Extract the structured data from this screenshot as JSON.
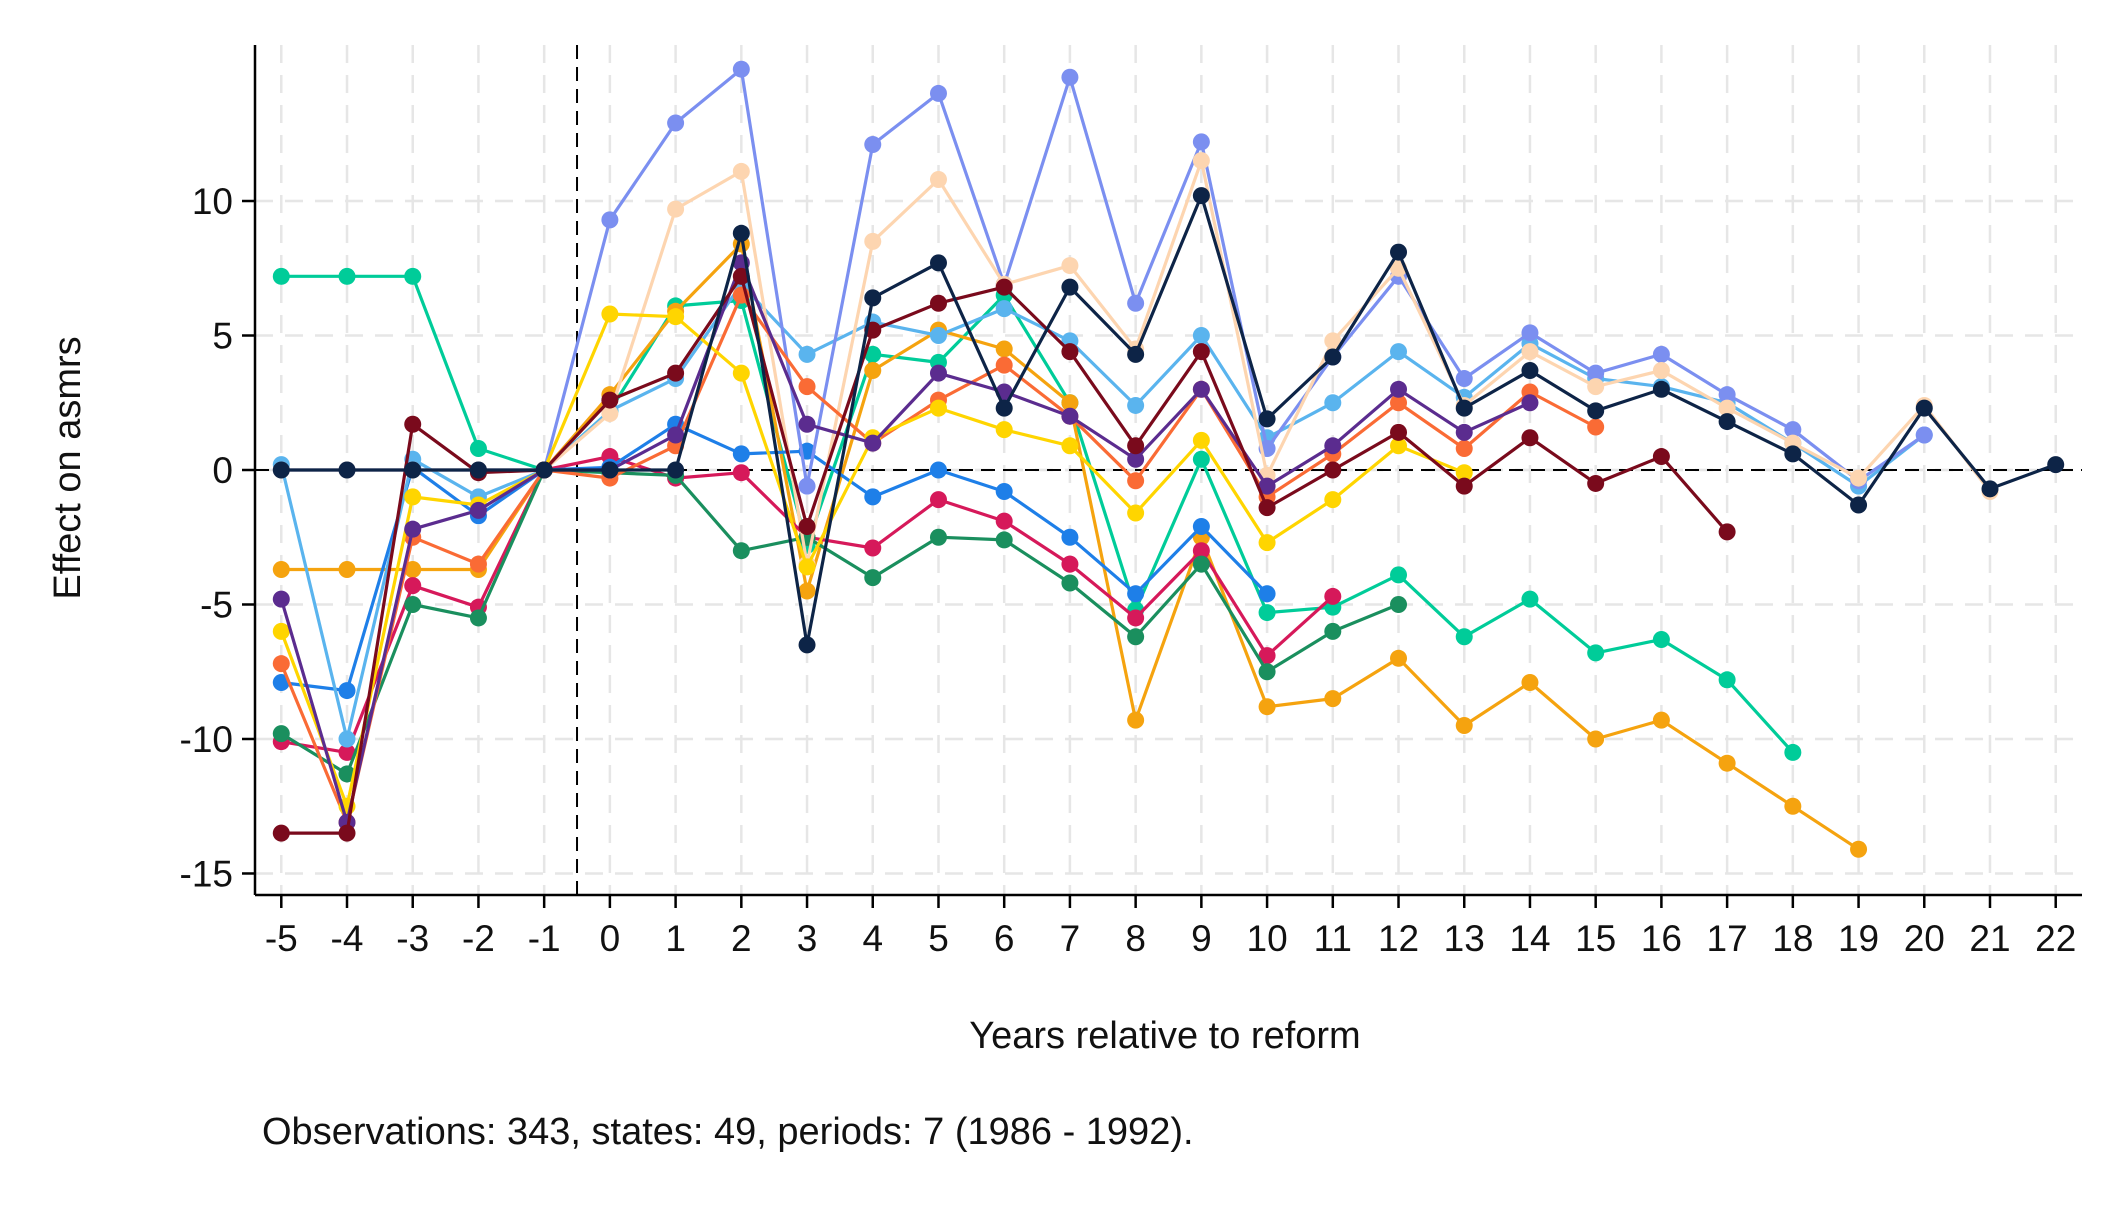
{
  "chart_data": {
    "type": "line",
    "title": "",
    "xlabel": "Years relative to reform",
    "ylabel": "Effect on asmrs",
    "note": "Observations: 343, states: 49, periods: 7 (1986 - 1992).",
    "x_ticks": [
      -5,
      -4,
      -3,
      -2,
      -1,
      0,
      1,
      2,
      3,
      4,
      5,
      6,
      7,
      8,
      9,
      10,
      11,
      12,
      13,
      14,
      15,
      16,
      17,
      18,
      19,
      20,
      21,
      22
    ],
    "y_ticks": [
      -15,
      -10,
      -5,
      0,
      5,
      10
    ],
    "xlim": [
      -5.4,
      22.4
    ],
    "ylim": [
      -15.8,
      15.8
    ],
    "grid": true,
    "legend": "none",
    "reference_lines": {
      "x": -0.5,
      "y": 0
    },
    "series": [
      {
        "color": "#00cc99",
        "points": [
          [
            -5,
            7.2
          ],
          [
            -4,
            7.2
          ],
          [
            -3,
            7.2
          ],
          [
            -2,
            0.8
          ],
          [
            -1,
            0
          ],
          [
            0,
            2.2
          ],
          [
            1,
            6.1
          ],
          [
            2,
            6.3
          ],
          [
            3,
            -2.8
          ],
          [
            4,
            4.3
          ],
          [
            5,
            4.0
          ],
          [
            6,
            6.5
          ],
          [
            7,
            2.5
          ],
          [
            8,
            -5.2
          ],
          [
            9,
            0.4
          ],
          [
            10,
            -5.3
          ],
          [
            11,
            -5.1
          ],
          [
            12,
            -3.9
          ],
          [
            13,
            -6.2
          ],
          [
            14,
            -4.8
          ],
          [
            15,
            -6.8
          ],
          [
            16,
            -6.3
          ],
          [
            17,
            -7.8
          ],
          [
            18,
            -10.5
          ]
        ]
      },
      {
        "color": "#f5a30f",
        "points": [
          [
            -5,
            -3.7
          ],
          [
            -4,
            -3.7
          ],
          [
            -3,
            -3.7
          ],
          [
            -2,
            -3.7
          ],
          [
            -1,
            0
          ],
          [
            0,
            2.8
          ],
          [
            1,
            5.9
          ],
          [
            2,
            8.4
          ],
          [
            3,
            -4.5
          ],
          [
            4,
            3.7
          ],
          [
            5,
            5.2
          ],
          [
            6,
            4.5
          ],
          [
            7,
            2.5
          ],
          [
            8,
            -9.3
          ],
          [
            9,
            -2.5
          ],
          [
            10,
            -8.8
          ],
          [
            11,
            -8.5
          ],
          [
            12,
            -7.0
          ],
          [
            13,
            -9.5
          ],
          [
            14,
            -7.9
          ],
          [
            15,
            -10.0
          ],
          [
            16,
            -9.3
          ],
          [
            17,
            -10.9
          ],
          [
            18,
            -12.5
          ],
          [
            19,
            -14.1
          ]
        ]
      },
      {
        "color": "#d6195a",
        "points": [
          [
            -5,
            -10.1
          ],
          [
            -4,
            -10.5
          ],
          [
            -3,
            -4.3
          ],
          [
            -2,
            -5.1
          ],
          [
            -1,
            0
          ],
          [
            0,
            0.5
          ],
          [
            1,
            -0.3
          ],
          [
            2,
            -0.1
          ],
          [
            3,
            -2.5
          ],
          [
            4,
            -2.9
          ],
          [
            5,
            -1.1
          ],
          [
            6,
            -1.9
          ],
          [
            7,
            -3.5
          ],
          [
            8,
            -5.5
          ],
          [
            9,
            -3.0
          ],
          [
            10,
            -6.9
          ],
          [
            11,
            -4.7
          ]
        ]
      },
      {
        "color": "#1a8f5e",
        "points": [
          [
            -5,
            -9.8
          ],
          [
            -4,
            -11.3
          ],
          [
            -3,
            -5.0
          ],
          [
            -2,
            -5.5
          ],
          [
            -1,
            0
          ],
          [
            0,
            -0.1
          ],
          [
            1,
            -0.2
          ],
          [
            2,
            -3.0
          ],
          [
            3,
            -2.5
          ],
          [
            4,
            -4.0
          ],
          [
            5,
            -2.5
          ],
          [
            6,
            -2.6
          ],
          [
            7,
            -4.2
          ],
          [
            8,
            -6.2
          ],
          [
            9,
            -3.5
          ],
          [
            10,
            -7.5
          ],
          [
            11,
            -6.0
          ],
          [
            12,
            -5.0
          ]
        ]
      },
      {
        "color": "#1e7fe8",
        "points": [
          [
            -5,
            -7.9
          ],
          [
            -4,
            -8.2
          ],
          [
            -3,
            0.1
          ],
          [
            -2,
            -1.7
          ],
          [
            -1,
            0
          ],
          [
            0,
            0.1
          ],
          [
            1,
            1.7
          ],
          [
            2,
            0.6
          ],
          [
            3,
            0.7
          ],
          [
            4,
            -1.0
          ],
          [
            5,
            0.0
          ],
          [
            6,
            -0.8
          ],
          [
            7,
            -2.5
          ],
          [
            8,
            -4.6
          ],
          [
            9,
            -2.1
          ],
          [
            10,
            -4.6
          ]
        ]
      },
      {
        "color": "#5ab4ee",
        "points": [
          [
            -5,
            0.2
          ],
          [
            -4,
            -10.0
          ],
          [
            -3,
            0.4
          ],
          [
            -2,
            -1.0
          ],
          [
            -1,
            0
          ],
          [
            0,
            2.2
          ],
          [
            1,
            3.4
          ],
          [
            2,
            6.9
          ],
          [
            3,
            4.3
          ],
          [
            4,
            5.5
          ],
          [
            5,
            5.0
          ],
          [
            6,
            6.0
          ],
          [
            7,
            4.8
          ],
          [
            8,
            2.4
          ],
          [
            9,
            5.0
          ],
          [
            10,
            1.2
          ],
          [
            11,
            2.5
          ],
          [
            12,
            4.4
          ],
          [
            13,
            2.7
          ],
          [
            14,
            4.7
          ],
          [
            15,
            3.4
          ],
          [
            16,
            3.1
          ],
          [
            17,
            2.5
          ],
          [
            18,
            1.0
          ],
          [
            19,
            -0.6
          ],
          [
            20,
            1.3
          ]
        ]
      },
      {
        "color": "#7b8ff0",
        "points": [
          [
            -5,
            0.0
          ],
          [
            -4,
            0.0
          ],
          [
            -3,
            0.0
          ],
          [
            -2,
            0.0
          ],
          [
            -1,
            0
          ],
          [
            0,
            9.3
          ],
          [
            1,
            12.9
          ],
          [
            2,
            14.9
          ],
          [
            3,
            -0.6
          ],
          [
            4,
            12.1
          ],
          [
            5,
            14.0
          ],
          [
            6,
            6.9
          ],
          [
            7,
            14.6
          ],
          [
            8,
            6.2
          ],
          [
            9,
            12.2
          ],
          [
            10,
            0.8
          ],
          [
            11,
            4.2
          ],
          [
            12,
            7.2
          ],
          [
            13,
            3.4
          ],
          [
            14,
            5.1
          ],
          [
            15,
            3.6
          ],
          [
            16,
            4.3
          ],
          [
            17,
            2.8
          ],
          [
            18,
            1.5
          ],
          [
            19,
            -0.4
          ],
          [
            20,
            1.3
          ]
        ]
      },
      {
        "color": "#fdd5b0",
        "points": [
          [
            -5,
            0.0
          ],
          [
            -4,
            0.0
          ],
          [
            -3,
            0.0
          ],
          [
            -2,
            0.0
          ],
          [
            -1,
            0
          ],
          [
            0,
            2.1
          ],
          [
            1,
            9.7
          ],
          [
            2,
            11.1
          ],
          [
            3,
            -3.5
          ],
          [
            4,
            8.5
          ],
          [
            5,
            10.8
          ],
          [
            6,
            6.9
          ],
          [
            7,
            7.6
          ],
          [
            8,
            4.5
          ],
          [
            9,
            11.5
          ],
          [
            10,
            -0.2
          ],
          [
            11,
            4.8
          ],
          [
            12,
            7.5
          ],
          [
            13,
            2.4
          ],
          [
            14,
            4.4
          ],
          [
            15,
            3.1
          ],
          [
            16,
            3.7
          ],
          [
            17,
            2.3
          ],
          [
            18,
            1.0
          ],
          [
            19,
            -0.3
          ],
          [
            20,
            2.4
          ],
          [
            21,
            -0.8
          ]
        ]
      },
      {
        "color": "#fa6b35",
        "points": [
          [
            -5,
            -7.2
          ],
          [
            -4,
            -13.1
          ],
          [
            -3,
            -2.5
          ],
          [
            -2,
            -3.5
          ],
          [
            -1,
            0
          ],
          [
            0,
            -0.3
          ],
          [
            1,
            0.9
          ],
          [
            2,
            6.5
          ],
          [
            3,
            3.1
          ],
          [
            4,
            1.0
          ],
          [
            5,
            2.6
          ],
          [
            6,
            3.9
          ],
          [
            7,
            2.0
          ],
          [
            8,
            -0.4
          ],
          [
            9,
            3.0
          ],
          [
            10,
            -1.0
          ],
          [
            11,
            0.6
          ],
          [
            12,
            2.5
          ],
          [
            13,
            0.8
          ],
          [
            14,
            2.9
          ],
          [
            15,
            1.6
          ]
        ]
      },
      {
        "color": "#ffd500",
        "points": [
          [
            -5,
            -6.0
          ],
          [
            -4,
            -12.5
          ],
          [
            -3,
            -1.0
          ],
          [
            -2,
            -1.3
          ],
          [
            -1,
            0
          ],
          [
            0,
            5.8
          ],
          [
            1,
            5.7
          ],
          [
            2,
            3.6
          ],
          [
            3,
            -3.6
          ],
          [
            4,
            1.2
          ],
          [
            5,
            2.3
          ],
          [
            6,
            1.5
          ],
          [
            7,
            0.9
          ],
          [
            8,
            -1.6
          ],
          [
            9,
            1.1
          ],
          [
            10,
            -2.7
          ],
          [
            11,
            -1.1
          ],
          [
            12,
            0.9
          ],
          [
            13,
            -0.1
          ]
        ]
      },
      {
        "color": "#5b2c8f",
        "points": [
          [
            -5,
            -4.8
          ],
          [
            -4,
            -13.1
          ],
          [
            -3,
            -2.2
          ],
          [
            -2,
            -1.5
          ],
          [
            -1,
            0
          ],
          [
            0,
            0.0
          ],
          [
            1,
            1.3
          ],
          [
            2,
            7.7
          ],
          [
            3,
            1.7
          ],
          [
            4,
            1.0
          ],
          [
            5,
            3.6
          ],
          [
            6,
            2.9
          ],
          [
            7,
            2.0
          ],
          [
            8,
            0.4
          ],
          [
            9,
            3.0
          ],
          [
            10,
            -0.6
          ],
          [
            11,
            0.9
          ],
          [
            12,
            3.0
          ],
          [
            13,
            1.4
          ],
          [
            14,
            2.5
          ]
        ]
      },
      {
        "color": "#7a0a1c",
        "points": [
          [
            -5,
            -13.5
          ],
          [
            -4,
            -13.5
          ],
          [
            -3,
            1.7
          ],
          [
            -2,
            -0.1
          ],
          [
            -1,
            0
          ],
          [
            0,
            2.6
          ],
          [
            1,
            3.6
          ],
          [
            2,
            7.2
          ],
          [
            3,
            -2.1
          ],
          [
            4,
            5.2
          ],
          [
            5,
            6.2
          ],
          [
            6,
            6.8
          ],
          [
            7,
            4.4
          ],
          [
            8,
            0.9
          ],
          [
            9,
            4.4
          ],
          [
            10,
            -1.4
          ],
          [
            11,
            0.0
          ],
          [
            12,
            1.4
          ],
          [
            13,
            -0.6
          ],
          [
            14,
            1.2
          ],
          [
            15,
            -0.5
          ],
          [
            16,
            0.5
          ],
          [
            17,
            -2.3
          ]
        ]
      },
      {
        "color": "#0d2447",
        "points": [
          [
            -5,
            0.0
          ],
          [
            -4,
            0.0
          ],
          [
            -3,
            0.0
          ],
          [
            -2,
            0.0
          ],
          [
            -1,
            0
          ],
          [
            0,
            0.0
          ],
          [
            1,
            0.0
          ],
          [
            2,
            8.8
          ],
          [
            3,
            -6.5
          ],
          [
            4,
            6.4
          ],
          [
            5,
            7.7
          ],
          [
            6,
            2.3
          ],
          [
            7,
            6.8
          ],
          [
            8,
            4.3
          ],
          [
            9,
            10.2
          ],
          [
            10,
            1.9
          ],
          [
            11,
            4.2
          ],
          [
            12,
            8.1
          ],
          [
            13,
            2.3
          ],
          [
            14,
            3.7
          ],
          [
            15,
            2.2
          ],
          [
            16,
            3.0
          ],
          [
            17,
            1.8
          ],
          [
            18,
            0.6
          ],
          [
            19,
            -1.3
          ],
          [
            20,
            2.3
          ],
          [
            21,
            -0.7
          ],
          [
            22,
            0.2
          ]
        ]
      }
    ]
  }
}
